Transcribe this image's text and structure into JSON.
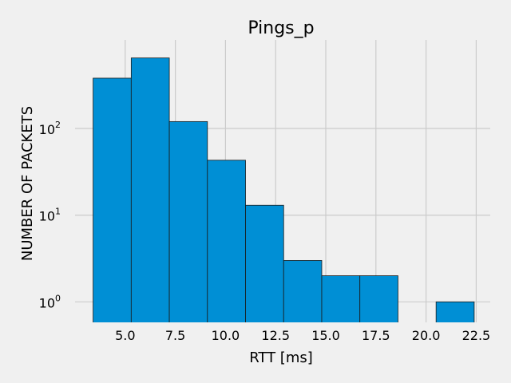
{
  "chart_data": {
    "type": "bar",
    "title": "Pings_p",
    "xlabel": "RTT [ms]",
    "ylabel": "NUMBER OF PACKETS",
    "y_scale": "log",
    "grid": true,
    "bar_color": "#008fd5",
    "edge_color": "#1a1a1a",
    "background": "#f0f0f0",
    "grid_color": "#cbcbcb",
    "xlim": [
      2.5,
      23.2
    ],
    "ylim": [
      0.58,
      1050
    ],
    "x_ticks": [
      5.0,
      7.5,
      10.0,
      12.5,
      15.0,
      17.5,
      20.0,
      22.5
    ],
    "x_tick_labels": [
      "5.0",
      "7.5",
      "10.0",
      "12.5",
      "15.0",
      "17.5",
      "20.0",
      "22.5"
    ],
    "y_ticks": [
      1,
      10,
      100
    ],
    "y_tick_labels": [
      {
        "base": "10",
        "exp": "0"
      },
      {
        "base": "10",
        "exp": "1"
      },
      {
        "base": "10",
        "exp": "2"
      }
    ],
    "bins": [
      {
        "x0": 3.4,
        "x1": 5.3,
        "count": 380
      },
      {
        "x0": 5.3,
        "x1": 7.2,
        "count": 650
      },
      {
        "x0": 7.2,
        "x1": 9.1,
        "count": 120
      },
      {
        "x0": 9.1,
        "x1": 11.0,
        "count": 43
      },
      {
        "x0": 11.0,
        "x1": 12.9,
        "count": 13
      },
      {
        "x0": 12.9,
        "x1": 14.8,
        "count": 3
      },
      {
        "x0": 14.8,
        "x1": 16.7,
        "count": 2
      },
      {
        "x0": 16.7,
        "x1": 18.6,
        "count": 2
      },
      {
        "x0": 18.6,
        "x1": 20.5,
        "count": 0
      },
      {
        "x0": 20.5,
        "x1": 22.4,
        "count": 1
      }
    ]
  }
}
